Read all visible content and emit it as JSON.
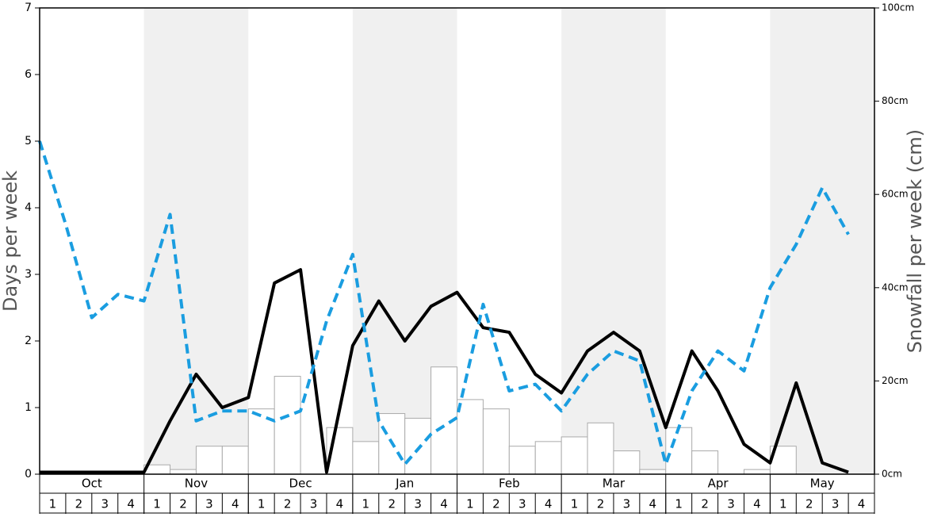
{
  "chart_data": {
    "type": "bar-line",
    "y_label": "Days per week",
    "y2_label": "Snowfall per week (cm)",
    "months": [
      "Oct",
      "Nov",
      "Dec",
      "Jan",
      "Feb",
      "Mar",
      "Apr",
      "May"
    ],
    "categories": [
      "1",
      "2",
      "3",
      "4",
      "1",
      "2",
      "3",
      "4",
      "1",
      "2",
      "3",
      "4",
      "1",
      "2",
      "3",
      "4",
      "1",
      "2",
      "3",
      "4",
      "1",
      "2",
      "3",
      "4",
      "1",
      "2",
      "3",
      "4",
      "1",
      "2",
      "3",
      "4"
    ],
    "series": [
      {
        "kind": "bar",
        "axis": "y2",
        "color": "#ffffff",
        "values": [
          0,
          0,
          0,
          0,
          2,
          1,
          6,
          6,
          14,
          21,
          0,
          10,
          7,
          13,
          12,
          23,
          16,
          14,
          6,
          7,
          8,
          11,
          5,
          1,
          10,
          5,
          0,
          1,
          6,
          0,
          0,
          0
        ]
      },
      {
        "kind": "line",
        "color": "#000000",
        "values": [
          0.03,
          0.03,
          0.03,
          0.03,
          0.03,
          0.8,
          1.5,
          1.0,
          1.15,
          2.87,
          3.07,
          0.03,
          1.93,
          2.6,
          2.0,
          2.52,
          2.73,
          2.2,
          2.13,
          1.5,
          1.22,
          1.85,
          2.13,
          1.85,
          0.7,
          1.85,
          1.25,
          0.45,
          0.17,
          1.37,
          0.17,
          0.03
        ]
      },
      {
        "kind": "line",
        "dashed": true,
        "color": "#1a9de0",
        "values": [
          5.0,
          3.75,
          2.35,
          2.7,
          2.6,
          3.9,
          0.8,
          0.95,
          0.95,
          0.8,
          0.95,
          2.3,
          3.3,
          0.8,
          0.15,
          0.6,
          0.85,
          2.55,
          1.25,
          1.35,
          0.95,
          1.5,
          1.85,
          1.7,
          0.15,
          1.25,
          1.85,
          1.55,
          2.8,
          3.45,
          4.3,
          3.6
        ]
      }
    ],
    "ylim": [
      0,
      7
    ],
    "yticks": [
      0,
      1,
      2,
      3,
      4,
      5,
      6,
      7
    ],
    "y2lim": [
      0,
      100
    ],
    "y2ticks": [
      {
        "value": 0,
        "label": "0cm"
      },
      {
        "value": 20,
        "label": "20cm"
      },
      {
        "value": 40,
        "label": "40cm"
      },
      {
        "value": 60,
        "label": "60cm"
      },
      {
        "value": 80,
        "label": "80cm"
      },
      {
        "value": 100,
        "label": "100cm"
      }
    ]
  }
}
